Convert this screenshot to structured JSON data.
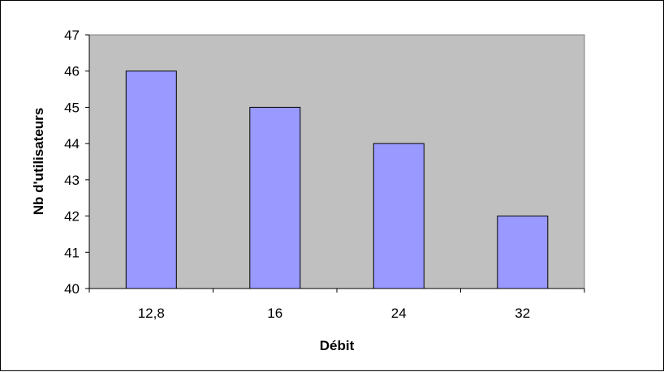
{
  "chart_data": {
    "type": "bar",
    "title": "",
    "xlabel": "Débit",
    "ylabel": "Nb d'utilisateurs",
    "categories": [
      "12,8",
      "16",
      "24",
      "32"
    ],
    "values": [
      46,
      45,
      44,
      42
    ],
    "ylim": [
      40,
      47
    ],
    "yticks": [
      40,
      41,
      42,
      43,
      44,
      45,
      46,
      47
    ],
    "grid": false,
    "legend": "none",
    "colors": {
      "plot_background": "#c0c0c0",
      "bar_fill": "#9999ff",
      "bar_stroke": "#000000"
    }
  }
}
